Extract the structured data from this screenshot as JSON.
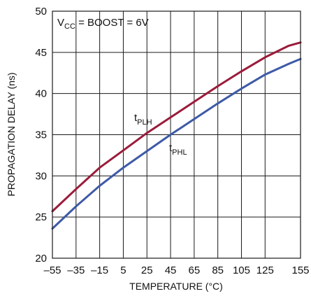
{
  "chart_data": {
    "type": "line",
    "title": "",
    "xlabel": "TEMPERATURE (°C)",
    "ylabel": "PROPAGATION DELAY (ns)",
    "xlim": [
      -55,
      155
    ],
    "ylim": [
      20,
      50
    ],
    "xticks": [
      -55,
      -35,
      -15,
      5,
      25,
      45,
      65,
      85,
      105,
      125,
      155
    ],
    "yticks": [
      20,
      25,
      30,
      35,
      40,
      45,
      50
    ],
    "grid": true,
    "annotation": {
      "main": "V",
      "sub": "CC",
      "rest": " = BOOST = 6V"
    },
    "series": [
      {
        "name": "tPLH",
        "label_main": "t",
        "label_sub": "PLH",
        "color": "#9b1b3a",
        "x": [
          -55,
          -35,
          -15,
          5,
          25,
          45,
          65,
          85,
          105,
          125,
          145,
          155
        ],
        "y": [
          25.7,
          28.4,
          31.0,
          33.1,
          35.2,
          37.1,
          39.0,
          40.9,
          42.7,
          44.4,
          45.8,
          46.2
        ]
      },
      {
        "name": "tPHL",
        "label_main": "t",
        "label_sub": "PHL",
        "color": "#3d5aa6",
        "x": [
          -55,
          -35,
          -15,
          5,
          25,
          45,
          65,
          85,
          105,
          125,
          145,
          155
        ],
        "y": [
          23.6,
          26.3,
          28.8,
          31.0,
          33.0,
          35.0,
          36.9,
          38.8,
          40.6,
          42.3,
          43.6,
          44.2
        ]
      }
    ]
  }
}
